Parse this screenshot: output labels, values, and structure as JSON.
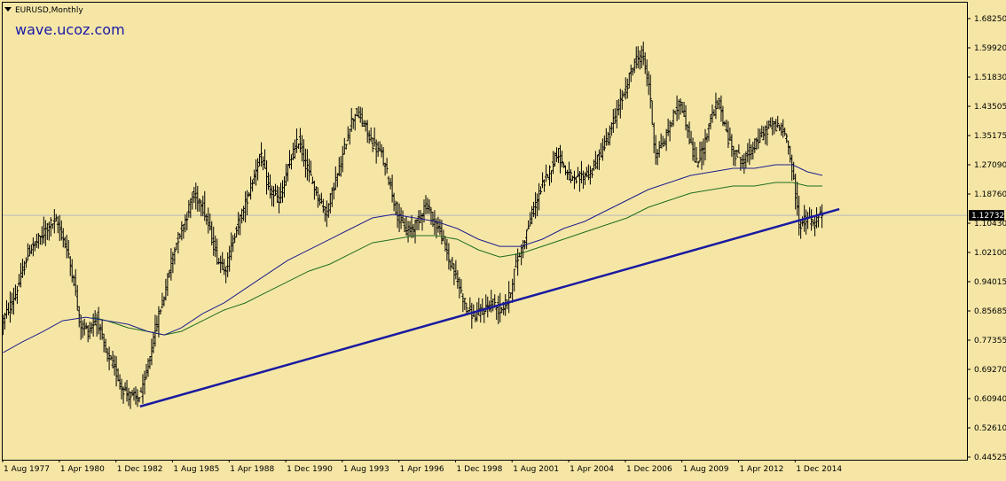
{
  "header": {
    "symbol_label": "EURUSD,Monthly",
    "watermark": "wave.ucoz.com",
    "menu_icon": "triangle-down-icon"
  },
  "colors": {
    "background": "#f5e6a6",
    "bars": "#000000",
    "ma_long": "#1f1f8c",
    "ma_short": "#1f6e1f",
    "trendline": "#1a1aa0",
    "current_line": "#b8b8b8",
    "price_label_bg": "#000000",
    "price_label_fg": "#ffffff"
  },
  "chart_data": {
    "type": "ohlc",
    "title": "EURUSD,Monthly",
    "ylim": [
      0.44525,
      1.6825
    ],
    "x_range": [
      1977.58,
      2017.0
    ],
    "y_ticks": [
      "1.68250",
      "1.59920",
      "1.51830",
      "1.43505",
      "1.35175",
      "1.27090",
      "1.18760",
      "1.10430",
      "1.02100",
      "0.94015",
      "0.85685",
      "0.77355",
      "0.69270",
      "0.60940",
      "0.52610",
      "0.44525"
    ],
    "x_ticks": [
      {
        "label": "1 Aug 1977",
        "x": 1977.58
      },
      {
        "label": "1 Apr 1980",
        "x": 1980.25
      },
      {
        "label": "1 Dec 1982",
        "x": 1982.92
      },
      {
        "label": "1 Aug 1985",
        "x": 1985.58
      },
      {
        "label": "1 Apr 1988",
        "x": 1988.25
      },
      {
        "label": "1 Dec 1990",
        "x": 1990.92
      },
      {
        "label": "1 Aug 1993",
        "x": 1993.58
      },
      {
        "label": "1 Apr 1996",
        "x": 1996.25
      },
      {
        "label": "1 Dec 1998",
        "x": 1998.92
      },
      {
        "label": "1 Aug 2001",
        "x": 2001.58
      },
      {
        "label": "1 Apr 2004",
        "x": 2004.25
      },
      {
        "label": "1 Dec 2006",
        "x": 2006.92
      },
      {
        "label": "1 Aug 2009",
        "x": 2009.58
      },
      {
        "label": "1 Apr 2012",
        "x": 2012.25
      },
      {
        "label": "1 Dec 2014",
        "x": 2014.92
      }
    ],
    "current_price": "1.12732",
    "current_price_value": 1.12732,
    "price_path": [
      [
        1977.6,
        0.82
      ],
      [
        1978.3,
        0.91
      ],
      [
        1978.9,
        1.03
      ],
      [
        1979.4,
        1.06
      ],
      [
        1979.8,
        1.1
      ],
      [
        1980.2,
        1.11
      ],
      [
        1980.6,
        1.05
      ],
      [
        1981.0,
        0.95
      ],
      [
        1981.3,
        0.82
      ],
      [
        1981.7,
        0.8
      ],
      [
        1982.1,
        0.84
      ],
      [
        1982.5,
        0.74
      ],
      [
        1982.9,
        0.7
      ],
      [
        1983.3,
        0.64
      ],
      [
        1983.6,
        0.62
      ],
      [
        1984.0,
        0.61
      ],
      [
        1984.3,
        0.64
      ],
      [
        1984.6,
        0.73
      ],
      [
        1984.9,
        0.82
      ],
      [
        1985.3,
        0.91
      ],
      [
        1985.6,
        1.0
      ],
      [
        1985.9,
        1.06
      ],
      [
        1986.3,
        1.12
      ],
      [
        1986.6,
        1.18
      ],
      [
        1987.0,
        1.17
      ],
      [
        1987.4,
        1.09
      ],
      [
        1987.8,
        1.0
      ],
      [
        1988.2,
        0.98
      ],
      [
        1988.6,
        1.08
      ],
      [
        1989.0,
        1.14
      ],
      [
        1989.4,
        1.22
      ],
      [
        1989.8,
        1.3
      ],
      [
        1990.2,
        1.2
      ],
      [
        1990.7,
        1.17
      ],
      [
        1991.2,
        1.28
      ],
      [
        1991.6,
        1.34
      ],
      [
        1992.0,
        1.26
      ],
      [
        1992.4,
        1.2
      ],
      [
        1992.9,
        1.13
      ],
      [
        1993.3,
        1.22
      ],
      [
        1993.6,
        1.27
      ],
      [
        1994.0,
        1.38
      ],
      [
        1994.3,
        1.42
      ],
      [
        1994.7,
        1.38
      ],
      [
        1995.1,
        1.33
      ],
      [
        1995.5,
        1.3
      ],
      [
        1995.9,
        1.22
      ],
      [
        1996.3,
        1.12
      ],
      [
        1996.7,
        1.08
      ],
      [
        1997.1,
        1.1
      ],
      [
        1997.6,
        1.16
      ],
      [
        1997.9,
        1.12
      ],
      [
        1998.3,
        1.08
      ],
      [
        1998.7,
        1.0
      ],
      [
        1999.1,
        0.94
      ],
      [
        1999.5,
        0.87
      ],
      [
        1999.9,
        0.84
      ],
      [
        2000.3,
        0.86
      ],
      [
        2000.7,
        0.88
      ],
      [
        2001.1,
        0.86
      ],
      [
        2001.5,
        0.89
      ],
      [
        2001.8,
        0.98
      ],
      [
        2002.2,
        1.05
      ],
      [
        2002.6,
        1.13
      ],
      [
        2003.0,
        1.2
      ],
      [
        2003.4,
        1.25
      ],
      [
        2003.8,
        1.31
      ],
      [
        2004.2,
        1.25
      ],
      [
        2004.6,
        1.22
      ],
      [
        2005.0,
        1.24
      ],
      [
        2005.4,
        1.25
      ],
      [
        2005.8,
        1.3
      ],
      [
        2006.2,
        1.35
      ],
      [
        2006.6,
        1.42
      ],
      [
        2007.0,
        1.48
      ],
      [
        2007.4,
        1.56
      ],
      [
        2007.8,
        1.58
      ],
      [
        2008.1,
        1.5
      ],
      [
        2008.4,
        1.3
      ],
      [
        2008.8,
        1.33
      ],
      [
        2009.2,
        1.4
      ],
      [
        2009.6,
        1.45
      ],
      [
        2009.9,
        1.38
      ],
      [
        2010.3,
        1.27
      ],
      [
        2010.7,
        1.32
      ],
      [
        2011.0,
        1.4
      ],
      [
        2011.4,
        1.45
      ],
      [
        2011.8,
        1.35
      ],
      [
        2012.2,
        1.3
      ],
      [
        2012.6,
        1.28
      ],
      [
        2013.0,
        1.32
      ],
      [
        2013.4,
        1.35
      ],
      [
        2013.8,
        1.38
      ],
      [
        2014.2,
        1.38
      ],
      [
        2014.6,
        1.35
      ],
      [
        2014.9,
        1.24
      ],
      [
        2015.2,
        1.1
      ],
      [
        2015.6,
        1.12
      ],
      [
        2015.9,
        1.1
      ],
      [
        2016.2,
        1.13
      ]
    ],
    "ma_long": [
      [
        1977.6,
        0.74
      ],
      [
        1978.5,
        0.77
      ],
      [
        1979.5,
        0.8
      ],
      [
        1980.4,
        0.83
      ],
      [
        1981.5,
        0.84
      ],
      [
        1982.5,
        0.83
      ],
      [
        1983.5,
        0.82
      ],
      [
        1984.4,
        0.8
      ],
      [
        1985.2,
        0.79
      ],
      [
        1986.0,
        0.81
      ],
      [
        1987.0,
        0.85
      ],
      [
        1988.0,
        0.88
      ],
      [
        1989.0,
        0.92
      ],
      [
        1990.0,
        0.96
      ],
      [
        1991.0,
        1.0
      ],
      [
        1992.0,
        1.03
      ],
      [
        1993.0,
        1.06
      ],
      [
        1994.0,
        1.09
      ],
      [
        1995.0,
        1.12
      ],
      [
        1996.0,
        1.13
      ],
      [
        1997.0,
        1.12
      ],
      [
        1998.0,
        1.11
      ],
      [
        1999.0,
        1.09
      ],
      [
        2000.0,
        1.06
      ],
      [
        2001.0,
        1.04
      ],
      [
        2002.0,
        1.04
      ],
      [
        2003.0,
        1.06
      ],
      [
        2004.0,
        1.09
      ],
      [
        2005.0,
        1.11
      ],
      [
        2006.0,
        1.14
      ],
      [
        2007.0,
        1.17
      ],
      [
        2008.0,
        1.2
      ],
      [
        2009.0,
        1.22
      ],
      [
        2010.0,
        1.24
      ],
      [
        2011.0,
        1.25
      ],
      [
        2012.0,
        1.26
      ],
      [
        2013.0,
        1.26
      ],
      [
        2014.0,
        1.27
      ],
      [
        2014.8,
        1.27
      ],
      [
        2015.5,
        1.25
      ],
      [
        2016.2,
        1.24
      ]
    ],
    "ma_short": [
      [
        1981.8,
        0.84
      ],
      [
        1982.5,
        0.83
      ],
      [
        1983.5,
        0.81
      ],
      [
        1984.4,
        0.8
      ],
      [
        1985.2,
        0.79
      ],
      [
        1986.0,
        0.8
      ],
      [
        1987.0,
        0.83
      ],
      [
        1988.0,
        0.86
      ],
      [
        1989.0,
        0.88
      ],
      [
        1990.0,
        0.91
      ],
      [
        1991.0,
        0.94
      ],
      [
        1992.0,
        0.97
      ],
      [
        1993.0,
        0.99
      ],
      [
        1994.0,
        1.02
      ],
      [
        1995.0,
        1.05
      ],
      [
        1996.0,
        1.06
      ],
      [
        1997.0,
        1.07
      ],
      [
        1998.0,
        1.07
      ],
      [
        1999.0,
        1.06
      ],
      [
        2000.0,
        1.03
      ],
      [
        2001.0,
        1.01
      ],
      [
        2002.0,
        1.02
      ],
      [
        2003.0,
        1.04
      ],
      [
        2004.0,
        1.06
      ],
      [
        2005.0,
        1.08
      ],
      [
        2006.0,
        1.1
      ],
      [
        2007.0,
        1.12
      ],
      [
        2008.0,
        1.15
      ],
      [
        2009.0,
        1.17
      ],
      [
        2010.0,
        1.19
      ],
      [
        2011.0,
        1.2
      ],
      [
        2012.0,
        1.21
      ],
      [
        2013.0,
        1.21
      ],
      [
        2014.0,
        1.22
      ],
      [
        2014.8,
        1.22
      ],
      [
        2015.5,
        1.21
      ],
      [
        2016.2,
        1.21
      ]
    ],
    "trendline": [
      [
        1984.05,
        0.588
      ],
      [
        2017.0,
        1.145
      ]
    ],
    "grid": false
  }
}
